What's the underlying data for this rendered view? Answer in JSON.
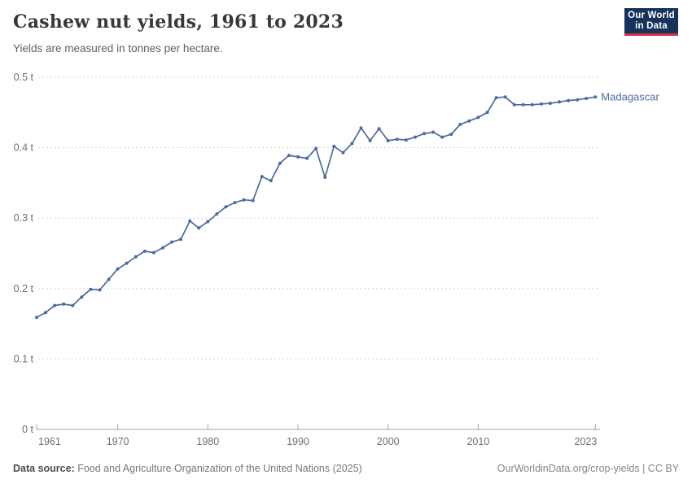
{
  "header": {
    "title": "Cashew nut yields, 1961 to 2023",
    "subtitle": "Yields are measured in tonnes per hectare.",
    "logo": {
      "line1": "Our World",
      "line2": "in Data"
    }
  },
  "chart_data": {
    "type": "line",
    "title": "Cashew nut yields, 1961 to 2023",
    "ylabel": "tonnes per hectare",
    "xlabel": "",
    "grid": "horizontal-dashed",
    "legend_position": "end-of-line",
    "xlim": [
      1961,
      2023
    ],
    "ylim": [
      0,
      0.5
    ],
    "x_ticks": [
      1961,
      1970,
      1980,
      1990,
      2000,
      2010,
      2023
    ],
    "y_ticks": [
      0,
      0.1,
      0.2,
      0.3,
      0.4,
      0.5
    ],
    "y_tick_labels": [
      "0 t",
      "0.1 t",
      "0.2 t",
      "0.3 t",
      "0.4 t",
      "0.5 t"
    ],
    "series": [
      {
        "name": "Madagascar",
        "color": "#4c6b9e",
        "x": [
          1961,
          1962,
          1963,
          1964,
          1965,
          1966,
          1967,
          1968,
          1969,
          1970,
          1971,
          1972,
          1973,
          1974,
          1975,
          1976,
          1977,
          1978,
          1979,
          1980,
          1981,
          1982,
          1983,
          1984,
          1985,
          1986,
          1987,
          1988,
          1989,
          1990,
          1991,
          1992,
          1993,
          1994,
          1995,
          1996,
          1997,
          1998,
          1999,
          2000,
          2001,
          2002,
          2003,
          2004,
          2005,
          2006,
          2007,
          2008,
          2009,
          2010,
          2011,
          2012,
          2013,
          2014,
          2015,
          2016,
          2017,
          2018,
          2019,
          2020,
          2021,
          2022,
          2023
        ],
        "values": [
          0.159,
          0.166,
          0.176,
          0.178,
          0.176,
          0.188,
          0.199,
          0.198,
          0.213,
          0.228,
          0.236,
          0.245,
          0.253,
          0.251,
          0.258,
          0.266,
          0.27,
          0.296,
          0.286,
          0.295,
          0.306,
          0.316,
          0.322,
          0.326,
          0.325,
          0.359,
          0.353,
          0.378,
          0.389,
          0.387,
          0.385,
          0.399,
          0.358,
          0.402,
          0.393,
          0.406,
          0.428,
          0.41,
          0.427,
          0.41,
          0.412,
          0.411,
          0.415,
          0.42,
          0.422,
          0.415,
          0.419,
          0.433,
          0.438,
          0.443,
          0.45,
          0.471,
          0.472,
          0.461,
          0.461,
          0.461,
          0.462,
          0.463,
          0.465,
          0.467,
          0.468,
          0.47,
          0.472
        ]
      }
    ]
  },
  "footer": {
    "source_label": "Data source:",
    "source_text": " Food and Agriculture Organization of the United Nations (2025)",
    "link_text": "OurWorldinData.org/crop-yields | CC BY"
  },
  "colors": {
    "line": "#4c6b9e",
    "grid": "#d5d5d5",
    "axis": "#a1a1a1",
    "tick_text": "#6e6e6e",
    "logo_bg": "#16335c",
    "logo_red": "#cf303e"
  }
}
